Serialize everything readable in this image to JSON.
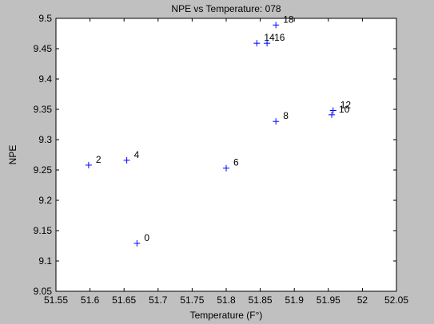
{
  "window": {
    "background": "#c0c0c0"
  },
  "chart_data": {
    "type": "scatter",
    "title": "NPE vs Temperature: 078",
    "xlabel": "Temperature (F°)",
    "ylabel": "NPE",
    "xlim": [
      51.55,
      52.05
    ],
    "ylim": [
      9.05,
      9.5
    ],
    "xticks": [
      "51.55",
      "51.6",
      "51.65",
      "51.7",
      "51.75",
      "51.8",
      "51.85",
      "51.9",
      "51.95",
      "52",
      "52.05"
    ],
    "yticks": [
      "9.05",
      "9.1",
      "9.15",
      "9.2",
      "9.25",
      "9.3",
      "9.35",
      "9.4",
      "9.45",
      "9.5"
    ],
    "grid": false,
    "marker": "+",
    "marker_color": "#0000ff",
    "points": [
      {
        "x": 51.598,
        "y": 9.258,
        "label": "2"
      },
      {
        "x": 51.654,
        "y": 9.266,
        "label": "4"
      },
      {
        "x": 51.669,
        "y": 9.129,
        "label": "0"
      },
      {
        "x": 51.8,
        "y": 9.253,
        "label": "6"
      },
      {
        "x": 51.845,
        "y": 9.459,
        "label": "14"
      },
      {
        "x": 51.86,
        "y": 9.459,
        "label": "16"
      },
      {
        "x": 51.873,
        "y": 9.489,
        "label": "18"
      },
      {
        "x": 51.873,
        "y": 9.33,
        "label": "8"
      },
      {
        "x": 51.955,
        "y": 9.341,
        "label": "10"
      },
      {
        "x": 51.957,
        "y": 9.348,
        "label": "12"
      }
    ]
  }
}
